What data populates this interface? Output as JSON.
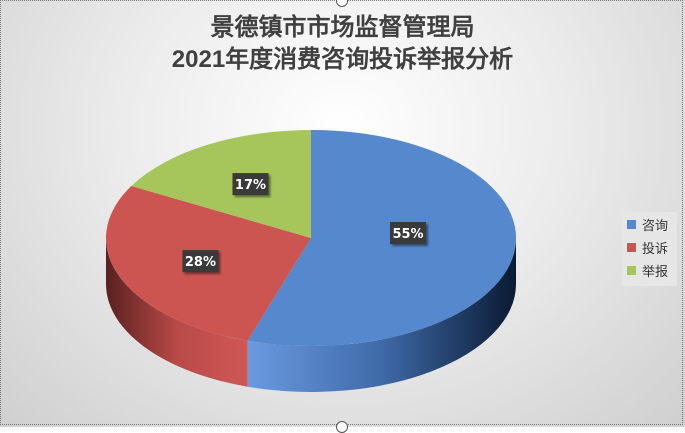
{
  "chart_data": {
    "type": "pie",
    "style": "3d",
    "title_lines": [
      "景德镇市市场监督管理局",
      "2021年度消费咨询投诉举报分析"
    ],
    "categories": [
      "咨询",
      "投诉",
      "举报"
    ],
    "values": [
      55,
      28,
      17
    ],
    "data_labels": [
      "55%",
      "28%",
      "17%"
    ],
    "colors": [
      "#5588cc",
      "#cc5552",
      "#a6c65c"
    ],
    "legend_position": "right"
  }
}
